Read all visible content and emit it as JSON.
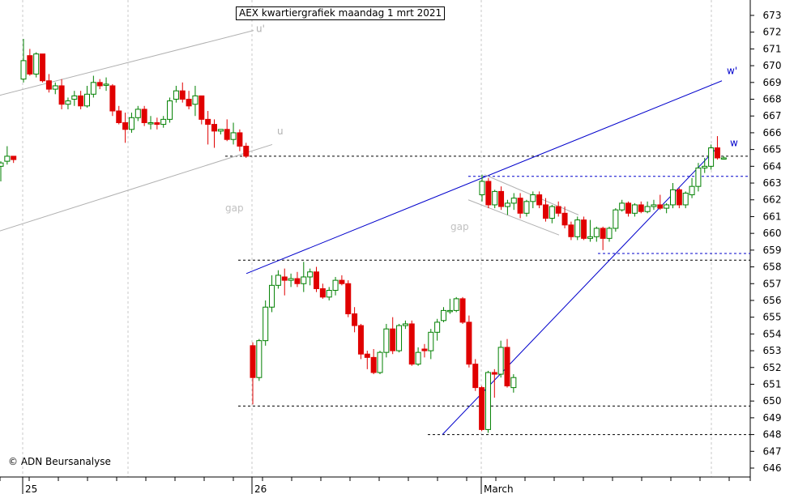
{
  "chart_data": {
    "type": "candlestick",
    "title": "AEX kwartiergrafiek maandag 1 mrt 2021",
    "copyright": "© ADN Beursanalyse",
    "y_axis": {
      "min": 645.5,
      "max": 673.5,
      "ticks": [
        646,
        647,
        648,
        649,
        650,
        651,
        652,
        653,
        654,
        655,
        656,
        657,
        658,
        659,
        660,
        661,
        662,
        663,
        664,
        665,
        666,
        667,
        668,
        669,
        670,
        671,
        672,
        673
      ]
    },
    "x_labels": [
      "25",
      "26",
      "March"
    ],
    "colors": {
      "up": "#008000",
      "down": "#e00000",
      "trend": "#0000cc",
      "channel": "#b0b0b0",
      "grid": "#c8c8c8"
    },
    "candles": [
      [
        664.0,
        664.3,
        663.1,
        664.2
      ],
      [
        664.3,
        665.2,
        664.1,
        664.6
      ],
      [
        664.6,
        664.6,
        664.2,
        664.4
      ],
      [
        669.2,
        671.6,
        669.0,
        670.3
      ],
      [
        670.6,
        671.0,
        669.4,
        669.5
      ],
      [
        669.5,
        670.8,
        669.3,
        670.7
      ],
      [
        670.7,
        670.7,
        669.0,
        669.1
      ],
      [
        669.1,
        669.5,
        668.4,
        668.6
      ],
      [
        668.6,
        669.0,
        668.3,
        668.8
      ],
      [
        668.8,
        669.2,
        667.4,
        667.7
      ],
      [
        667.7,
        668.1,
        667.4,
        667.9
      ],
      [
        668.0,
        668.5,
        667.6,
        668.2
      ],
      [
        668.2,
        668.5,
        667.4,
        667.6
      ],
      [
        667.6,
        668.8,
        667.5,
        668.3
      ],
      [
        668.3,
        669.4,
        668.1,
        669.0
      ],
      [
        669.0,
        669.2,
        668.6,
        668.8
      ],
      [
        668.9,
        669.3,
        668.5,
        668.9
      ],
      [
        668.8,
        668.9,
        667.0,
        667.3
      ],
      [
        667.3,
        667.6,
        666.5,
        666.6
      ],
      [
        666.6,
        667.2,
        665.4,
        666.2
      ],
      [
        666.2,
        667.2,
        666.0,
        666.9
      ],
      [
        666.9,
        667.6,
        666.7,
        667.4
      ],
      [
        667.4,
        667.6,
        666.4,
        666.6
      ],
      [
        666.6,
        667.0,
        666.2,
        666.6
      ],
      [
        666.6,
        666.9,
        666.2,
        666.5
      ],
      [
        666.5,
        667.0,
        666.3,
        666.8
      ],
      [
        666.8,
        668.1,
        666.6,
        667.9
      ],
      [
        668.0,
        668.8,
        667.8,
        668.5
      ],
      [
        668.5,
        669.0,
        667.8,
        668.0
      ],
      [
        668.0,
        668.5,
        667.4,
        667.6
      ],
      [
        667.7,
        668.8,
        667.0,
        668.2
      ],
      [
        668.2,
        668.2,
        666.5,
        666.8
      ],
      [
        666.8,
        667.3,
        665.3,
        666.5
      ],
      [
        666.5,
        666.8,
        665.1,
        666.1
      ],
      [
        666.1,
        666.2,
        665.9,
        666.2
      ],
      [
        666.2,
        666.8,
        665.5,
        665.6
      ],
      [
        665.6,
        666.6,
        665.3,
        666.0
      ],
      [
        666.0,
        666.2,
        664.9,
        665.2
      ],
      [
        665.2,
        665.4,
        664.5,
        664.6
      ],
      [
        653.3,
        653.5,
        649.8,
        651.4
      ],
      [
        651.4,
        653.7,
        651.2,
        653.6
      ],
      [
        653.6,
        656.0,
        653.3,
        655.6
      ],
      [
        655.6,
        657.5,
        655.3,
        656.9
      ],
      [
        656.9,
        657.8,
        656.7,
        657.5
      ],
      [
        657.4,
        657.9,
        656.3,
        657.2
      ],
      [
        657.2,
        657.6,
        656.8,
        657.3
      ],
      [
        657.3,
        657.7,
        656.8,
        657.0
      ],
      [
        657.0,
        658.3,
        656.5,
        657.4
      ],
      [
        657.4,
        657.9,
        656.9,
        657.7
      ],
      [
        657.7,
        658.0,
        656.5,
        656.7
      ],
      [
        656.7,
        657.0,
        656.1,
        656.2
      ],
      [
        656.2,
        656.8,
        656.0,
        656.6
      ],
      [
        656.6,
        657.4,
        656.3,
        657.2
      ],
      [
        657.2,
        657.5,
        656.9,
        657.0
      ],
      [
        657.0,
        657.2,
        655.0,
        655.2
      ],
      [
        655.2,
        655.6,
        654.1,
        654.5
      ],
      [
        654.5,
        654.6,
        652.5,
        652.8
      ],
      [
        652.8,
        653.0,
        651.9,
        652.6
      ],
      [
        652.6,
        653.1,
        651.6,
        651.7
      ],
      [
        651.7,
        653.0,
        651.6,
        652.9
      ],
      [
        652.9,
        654.6,
        652.6,
        654.3
      ],
      [
        654.3,
        655.0,
        652.8,
        653.0
      ],
      [
        653.0,
        654.6,
        652.9,
        654.5
      ],
      [
        654.5,
        654.8,
        654.3,
        654.6
      ],
      [
        654.6,
        654.8,
        652.1,
        652.2
      ],
      [
        652.2,
        653.2,
        652.1,
        652.9
      ],
      [
        653.1,
        653.4,
        652.6,
        653.0
      ],
      [
        653.0,
        654.3,
        652.5,
        654.1
      ],
      [
        654.1,
        654.9,
        653.6,
        654.7
      ],
      [
        654.8,
        655.6,
        654.7,
        655.4
      ],
      [
        655.4,
        656.1,
        655.2,
        655.4
      ],
      [
        655.4,
        656.2,
        655.3,
        656.1
      ],
      [
        656.1,
        656.2,
        654.6,
        654.7
      ],
      [
        654.7,
        655.1,
        652.0,
        652.2
      ],
      [
        652.2,
        652.5,
        650.6,
        650.8
      ],
      [
        650.8,
        650.9,
        648.2,
        648.3
      ],
      [
        648.3,
        651.8,
        648.1,
        651.7
      ],
      [
        651.7,
        651.9,
        650.2,
        651.6
      ],
      [
        651.6,
        653.6,
        651.4,
        653.2
      ],
      [
        653.2,
        653.7,
        650.8,
        650.9
      ],
      [
        650.8,
        651.6,
        650.5,
        651.4
      ],
      [
        662.3,
        663.5,
        661.9,
        663.1
      ],
      [
        663.1,
        663.3,
        661.5,
        661.7
      ],
      [
        661.7,
        662.6,
        661.5,
        662.5
      ],
      [
        662.5,
        662.8,
        661.4,
        661.6
      ],
      [
        661.6,
        662.0,
        661.1,
        661.8
      ],
      [
        661.8,
        662.4,
        661.4,
        662.1
      ],
      [
        662.1,
        662.4,
        660.9,
        661.2
      ],
      [
        661.2,
        662.0,
        661.0,
        661.9
      ],
      [
        661.9,
        662.5,
        661.5,
        662.3
      ],
      [
        662.3,
        662.5,
        661.5,
        661.7
      ],
      [
        661.7,
        662.1,
        660.7,
        660.9
      ],
      [
        660.9,
        661.7,
        660.6,
        661.6
      ],
      [
        661.6,
        661.9,
        661.0,
        661.2
      ],
      [
        661.2,
        661.6,
        660.3,
        660.5
      ],
      [
        660.5,
        660.7,
        659.6,
        659.8
      ],
      [
        659.8,
        661.0,
        659.6,
        660.8
      ],
      [
        660.8,
        661.0,
        659.6,
        659.7
      ],
      [
        659.7,
        660.8,
        659.5,
        659.8
      ],
      [
        659.8,
        660.4,
        659.5,
        660.3
      ],
      [
        660.3,
        660.4,
        659.0,
        659.7
      ],
      [
        659.7,
        660.4,
        659.5,
        660.3
      ],
      [
        660.3,
        661.5,
        660.1,
        661.4
      ],
      [
        661.4,
        662.0,
        661.3,
        661.8
      ],
      [
        661.8,
        661.9,
        661.0,
        661.2
      ],
      [
        661.2,
        661.8,
        661.0,
        661.7
      ],
      [
        661.7,
        661.9,
        661.2,
        661.3
      ],
      [
        661.3,
        661.9,
        661.2,
        661.6
      ],
      [
        661.6,
        662.0,
        661.4,
        661.7
      ],
      [
        661.7,
        662.3,
        661.4,
        661.5
      ],
      [
        661.5,
        661.8,
        661.2,
        661.7
      ],
      [
        661.7,
        663.0,
        661.5,
        662.6
      ],
      [
        662.6,
        662.7,
        661.5,
        661.7
      ],
      [
        661.7,
        662.5,
        661.5,
        662.4
      ],
      [
        662.3,
        663.3,
        662.1,
        662.8
      ],
      [
        662.8,
        664.2,
        662.5,
        663.9
      ],
      [
        663.9,
        664.5,
        663.6,
        664.0
      ],
      [
        664.0,
        665.3,
        663.8,
        665.1
      ],
      [
        665.1,
        665.8,
        664.4,
        664.5
      ],
      [
        664.5,
        664.6,
        664.4,
        664.5
      ]
    ],
    "annotations": [
      {
        "text": "u'"
      },
      {
        "text": "u"
      },
      {
        "text": "w'"
      },
      {
        "text": "w"
      },
      {
        "text": "gap"
      },
      {
        "text": "gap"
      }
    ],
    "trendlines": [
      {
        "kind": "channel",
        "x": [
          0,
          39
        ],
        "y": [
          668.2,
          672.1
        ]
      },
      {
        "kind": "channel",
        "x": [
          0,
          39
        ],
        "y": [
          660.1,
          665.3
        ]
      },
      {
        "kind": "trend",
        "x": [
          39,
          115
        ],
        "y": [
          657.6,
          669.1
        ]
      },
      {
        "kind": "trend",
        "x": [
          74,
          115
        ],
        "y": [
          648.0,
          665.1
        ]
      },
      {
        "kind": "channel",
        "x": [
          80,
          93
        ],
        "y": [
          663.5,
          661.1
        ]
      },
      {
        "kind": "channel",
        "x": [
          80,
          91
        ],
        "y": [
          662.0,
          659.9
        ]
      }
    ],
    "hlines": [
      {
        "kind": "black-dashed",
        "y": 664.6
      },
      {
        "kind": "black-dashed",
        "y": 658.4
      },
      {
        "kind": "black-dashed",
        "y": 649.7
      },
      {
        "kind": "black-dashed",
        "y": 648.0
      },
      {
        "kind": "blue-dashed",
        "y": 663.4
      },
      {
        "kind": "blue-dashed",
        "y": 658.8
      }
    ]
  }
}
